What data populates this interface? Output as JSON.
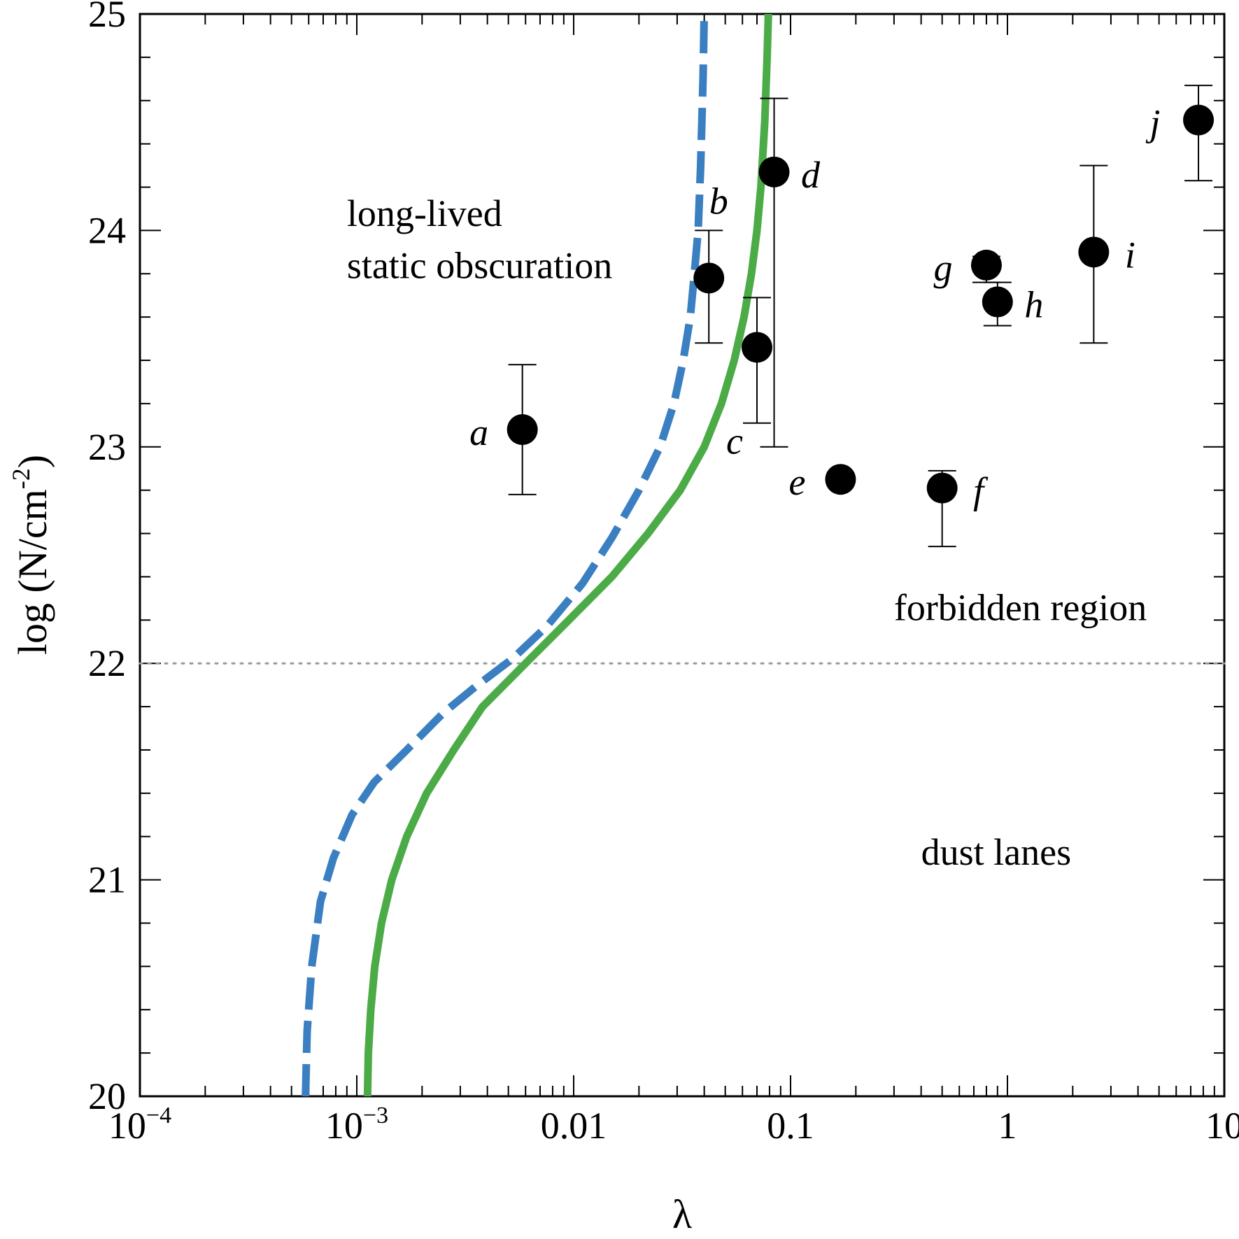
{
  "chart_data": {
    "type": "scatter",
    "xlabel": "λ",
    "ylabel": "log (N/cm",
    "ylabel_sup": "-2",
    "ylabel_close": ")",
    "x_scale": "log",
    "xlim": [
      0.0001,
      10
    ],
    "ylim": [
      20,
      25
    ],
    "grid": false,
    "x_ticks": [
      {
        "value": 0.0001,
        "base": "10",
        "exp": "−4"
      },
      {
        "value": 0.001,
        "base": "10",
        "exp": "−3"
      },
      {
        "value": 0.01,
        "text": "0.01"
      },
      {
        "value": 0.1,
        "text": "0.1"
      },
      {
        "value": 1,
        "text": "1"
      },
      {
        "value": 10,
        "text": "10"
      }
    ],
    "y_ticks": [
      {
        "value": 20,
        "text": "20"
      },
      {
        "value": 21,
        "text": "21"
      },
      {
        "value": 22,
        "text": "22"
      },
      {
        "value": 23,
        "text": "23"
      },
      {
        "value": 24,
        "text": "24"
      },
      {
        "value": 25,
        "text": "25"
      }
    ],
    "reference_line": {
      "y": 22,
      "style": "dotted",
      "color": "#999999"
    },
    "annotations": [
      {
        "text": "long-lived",
        "x": 0.0009,
        "y": 24.02
      },
      {
        "text": "static obscuration",
        "x": 0.0009,
        "y": 23.78
      },
      {
        "text": "forbidden region",
        "x": 0.3,
        "y": 22.2
      },
      {
        "text": "dust lanes",
        "x": 0.4,
        "y": 21.07
      }
    ],
    "points": [
      {
        "label": "a",
        "x": 0.0058,
        "y": 23.08,
        "y_low": 22.78,
        "y_high": 23.38,
        "label_side": "left"
      },
      {
        "label": "b",
        "x": 0.042,
        "y": 23.78,
        "y_low": 23.48,
        "y_high": 24.0,
        "label_side": "above-right"
      },
      {
        "label": "c",
        "x": 0.07,
        "y": 23.46,
        "y_low": 23.11,
        "y_high": 23.69,
        "label_side": "below-left"
      },
      {
        "label": "d",
        "x": 0.084,
        "y": 24.27,
        "y_low": 23.0,
        "y_high": 24.61,
        "label_side": "right"
      },
      {
        "label": "e",
        "x": 0.17,
        "y": 22.85,
        "label_side": "left"
      },
      {
        "label": "f",
        "x": 0.5,
        "y": 22.81,
        "y_low": 22.54,
        "y_high": 22.89,
        "label_side": "right"
      },
      {
        "label": "g",
        "x": 0.8,
        "y": 23.84,
        "y_low": 23.76,
        "y_high": 23.88,
        "label_side": "left"
      },
      {
        "label": "h",
        "x": 0.9,
        "y": 23.67,
        "y_low": 23.56,
        "y_high": 23.76,
        "label_side": "right"
      },
      {
        "label": "i",
        "x": 2.5,
        "y": 23.9,
        "y_low": 23.48,
        "y_high": 24.3,
        "label_side": "right"
      },
      {
        "label": "j",
        "x": 7.6,
        "y": 24.51,
        "y_low": 24.23,
        "y_high": 24.67,
        "label_side": "left"
      }
    ],
    "curves": [
      {
        "style": "dashed",
        "color": "#3a7fc1",
        "points": [
          [
            0.00058,
            20.0
          ],
          [
            0.00059,
            20.3
          ],
          [
            0.00062,
            20.6
          ],
          [
            0.00068,
            20.9
          ],
          [
            0.00078,
            21.1
          ],
          [
            0.00095,
            21.3
          ],
          [
            0.0012,
            21.45
          ],
          [
            0.0017,
            21.6
          ],
          [
            0.0025,
            21.77
          ],
          [
            0.0035,
            21.89
          ],
          [
            0.0052,
            22.02
          ],
          [
            0.0075,
            22.17
          ],
          [
            0.011,
            22.37
          ],
          [
            0.015,
            22.58
          ],
          [
            0.02,
            22.8
          ],
          [
            0.025,
            23.0
          ],
          [
            0.029,
            23.2
          ],
          [
            0.032,
            23.4
          ],
          [
            0.0345,
            23.6
          ],
          [
            0.036,
            23.8
          ],
          [
            0.0375,
            24.0
          ],
          [
            0.0385,
            24.3
          ],
          [
            0.0395,
            24.7
          ],
          [
            0.04,
            25.0
          ]
        ]
      },
      {
        "style": "solid",
        "color": "#4bab46",
        "points": [
          [
            0.00112,
            20.0
          ],
          [
            0.00113,
            20.2
          ],
          [
            0.00116,
            20.4
          ],
          [
            0.00121,
            20.6
          ],
          [
            0.0013,
            20.8
          ],
          [
            0.00145,
            21.0
          ],
          [
            0.0017,
            21.2
          ],
          [
            0.0021,
            21.4
          ],
          [
            0.0028,
            21.6
          ],
          [
            0.0038,
            21.8
          ],
          [
            0.006,
            22.0
          ],
          [
            0.0095,
            22.2
          ],
          [
            0.015,
            22.4
          ],
          [
            0.022,
            22.6
          ],
          [
            0.031,
            22.8
          ],
          [
            0.04,
            23.0
          ],
          [
            0.048,
            23.2
          ],
          [
            0.055,
            23.4
          ],
          [
            0.061,
            23.6
          ],
          [
            0.066,
            23.8
          ],
          [
            0.07,
            24.0
          ],
          [
            0.073,
            24.2
          ],
          [
            0.076,
            24.5
          ],
          [
            0.078,
            24.8
          ],
          [
            0.079,
            25.0
          ]
        ]
      }
    ]
  }
}
